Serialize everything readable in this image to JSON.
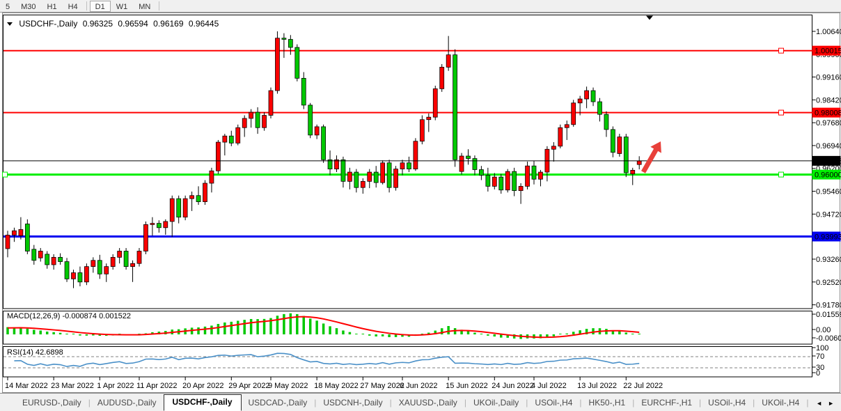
{
  "toolbar": {
    "groups": [
      [
        "5",
        "M30",
        "H1",
        "H4"
      ],
      [
        "D1",
        "W1",
        "MN"
      ]
    ],
    "active": "D1"
  },
  "tabs": {
    "items": [
      {
        "label": "EURUSD-,Daily",
        "active": false
      },
      {
        "label": "AUDUSD-,Daily",
        "active": false
      },
      {
        "label": "USDCHF-,Daily",
        "active": true
      },
      {
        "label": "USDCAD-,Daily",
        "active": false
      },
      {
        "label": "USDCNH-,Daily",
        "active": false
      },
      {
        "label": "XAUUSD-,Daily",
        "active": false
      },
      {
        "label": "UKOil-,Daily",
        "active": false
      },
      {
        "label": "USOil-,H4",
        "active": false
      },
      {
        "label": "HK50-,H1",
        "active": false
      },
      {
        "label": "EURCHF-,H1",
        "active": false
      },
      {
        "label": "USOil-,H4",
        "active": false
      },
      {
        "label": "UKOil-,H4",
        "active": false
      }
    ],
    "nav_left": "◄",
    "nav_right": "►"
  },
  "chart_data": {
    "type": "candlestick",
    "symbol": "USDCHF-,Daily",
    "title_ohlc": {
      "open": "0.96325",
      "high": "0.96594",
      "low": "0.96169",
      "close": "0.96445"
    },
    "colors": {
      "up": "#FA0000",
      "down": "#00C800",
      "wick": "#000000",
      "macd_hist": "#00C800",
      "macd_signal": "#FF0000",
      "rsi_line": "#4A90C8",
      "rsi_levels": "#808080",
      "arrow": "#E8403A",
      "current_price_line": "#000000"
    },
    "y_axis": {
      "ticks": [
        "1.00640",
        "0.99900",
        "0.99160",
        "0.98420",
        "0.97680",
        "0.96940",
        "0.96200",
        "0.95460",
        "0.94720",
        "0.93980",
        "0.93260",
        "0.92520",
        "0.91780"
      ]
    },
    "x_axis": {
      "ticks": [
        {
          "i": 0,
          "label": "14 Mar 2022"
        },
        {
          "i": 7,
          "label": "23 Mar 2022"
        },
        {
          "i": 14,
          "label": "1 Apr 2022"
        },
        {
          "i": 20,
          "label": "11 Apr 2022"
        },
        {
          "i": 27,
          "label": "20 Apr 2022"
        },
        {
          "i": 34,
          "label": "29 Apr 2022"
        },
        {
          "i": 40,
          "label": "9 May 2022"
        },
        {
          "i": 47,
          "label": "18 May 2022"
        },
        {
          "i": 54,
          "label": "27 May 2022"
        },
        {
          "i": 60,
          "label": "6 Jun 2022"
        },
        {
          "i": 67,
          "label": "15 Jun 2022"
        },
        {
          "i": 74,
          "label": "24 Jun 2022"
        },
        {
          "i": 80,
          "label": "4 Jul 2022"
        },
        {
          "i": 87,
          "label": "13 Jul 2022"
        },
        {
          "i": 94,
          "label": "22 Jul 2022"
        }
      ]
    },
    "h_lines": [
      {
        "price": 1.00015,
        "label": "1.00015",
        "color": "#FF0000",
        "width": 2,
        "handles": [
          1122
        ]
      },
      {
        "price": 0.98008,
        "label": "0.98008",
        "color": "#FF0000",
        "width": 2,
        "handles": [
          1122
        ]
      },
      {
        "price": 0.96,
        "label": "0.96000",
        "color": "#00EE00",
        "width": 3,
        "handles": [
          7,
          1122
        ]
      },
      {
        "price": 0.93993,
        "label": "0.93993",
        "color": "#0000F0",
        "width": 3,
        "handles": []
      }
    ],
    "current_price": {
      "value": 0.96445,
      "label": "0.96445"
    },
    "indicators": {
      "macd": {
        "label": "MACD(12,26,9)",
        "values": "-0.000874 0.001522",
        "axis": [
          "0.015596",
          "0.00",
          "-0.006055"
        ]
      },
      "rsi": {
        "label": "RSI(14)",
        "value": "42.6898",
        "axis": [
          "100",
          "70",
          "30",
          "0"
        ]
      }
    },
    "candles": [
      [
        0.936,
        0.9418,
        0.9332,
        0.9404
      ],
      [
        0.9404,
        0.9428,
        0.9382,
        0.9418
      ],
      [
        0.9402,
        0.9462,
        0.939,
        0.9422
      ],
      [
        0.944,
        0.9455,
        0.9342,
        0.9352
      ],
      [
        0.9358,
        0.9372,
        0.9308,
        0.9322
      ],
      [
        0.933,
        0.9362,
        0.9318,
        0.9352
      ],
      [
        0.9342,
        0.9352,
        0.9295,
        0.9308
      ],
      [
        0.9308,
        0.9342,
        0.9292,
        0.9332
      ],
      [
        0.9332,
        0.9345,
        0.9308,
        0.9318
      ],
      [
        0.9318,
        0.933,
        0.9252,
        0.9262
      ],
      [
        0.9262,
        0.9292,
        0.9232,
        0.9282
      ],
      [
        0.9282,
        0.9302,
        0.9238,
        0.9252
      ],
      [
        0.9252,
        0.9312,
        0.9242,
        0.9302
      ],
      [
        0.9302,
        0.9332,
        0.9282,
        0.9322
      ],
      [
        0.9322,
        0.934,
        0.9262,
        0.9278
      ],
      [
        0.9278,
        0.9312,
        0.9252,
        0.9302
      ],
      [
        0.9302,
        0.9342,
        0.9292,
        0.9332
      ],
      [
        0.9332,
        0.9362,
        0.9312,
        0.9352
      ],
      [
        0.9352,
        0.9362,
        0.9292,
        0.9302
      ],
      [
        0.9302,
        0.9322,
        0.9252,
        0.9312
      ],
      [
        0.9312,
        0.9362,
        0.9302,
        0.9352
      ],
      [
        0.9352,
        0.9448,
        0.9342,
        0.9438
      ],
      [
        0.9438,
        0.9462,
        0.9402,
        0.9442
      ],
      [
        0.9442,
        0.9452,
        0.9412,
        0.9428
      ],
      [
        0.9428,
        0.9455,
        0.9405,
        0.9448
      ],
      [
        0.9448,
        0.9532,
        0.9398,
        0.9522
      ],
      [
        0.9522,
        0.9532,
        0.9442,
        0.9462
      ],
      [
        0.9462,
        0.9532,
        0.9452,
        0.9522
      ],
      [
        0.9522,
        0.9545,
        0.9482,
        0.9532
      ],
      [
        0.9532,
        0.9562,
        0.9502,
        0.9512
      ],
      [
        0.9512,
        0.9582,
        0.9502,
        0.9572
      ],
      [
        0.9572,
        0.9622,
        0.9542,
        0.9612
      ],
      [
        0.9612,
        0.9712,
        0.9602,
        0.9705
      ],
      [
        0.9705,
        0.9732,
        0.9662,
        0.9725
      ],
      [
        0.9725,
        0.9742,
        0.9692,
        0.9702
      ],
      [
        0.9702,
        0.9762,
        0.9695,
        0.9752
      ],
      [
        0.9752,
        0.9792,
        0.9722,
        0.9782
      ],
      [
        0.9782,
        0.9812,
        0.9752,
        0.9802
      ],
      [
        0.9802,
        0.9818,
        0.9732,
        0.9752
      ],
      [
        0.9752,
        0.9802,
        0.9742,
        0.9792
      ],
      [
        0.9792,
        0.9882,
        0.9782,
        0.9872
      ],
      [
        0.9872,
        1.0064,
        0.9862,
        1.0042
      ],
      [
        1.0042,
        1.0058,
        0.9978,
        1.0038
      ],
      [
        1.0038,
        1.0052,
        0.9988,
        1.0012
      ],
      [
        1.0012,
        1.0022,
        0.9902,
        0.9912
      ],
      [
        0.9912,
        0.9932,
        0.9812,
        0.9825
      ],
      [
        0.9825,
        0.9832,
        0.9718,
        0.9728
      ],
      [
        0.9728,
        0.9762,
        0.9715,
        0.9755
      ],
      [
        0.9755,
        0.9762,
        0.9638,
        0.9648
      ],
      [
        0.9648,
        0.9678,
        0.9598,
        0.9618
      ],
      [
        0.9618,
        0.9662,
        0.9608,
        0.9648
      ],
      [
        0.9648,
        0.9658,
        0.9558,
        0.9578
      ],
      [
        0.9578,
        0.9622,
        0.9552,
        0.9608
      ],
      [
        0.9608,
        0.9618,
        0.9542,
        0.9558
      ],
      [
        0.9558,
        0.9588,
        0.9538,
        0.9578
      ],
      [
        0.9578,
        0.9618,
        0.9556,
        0.9608
      ],
      [
        0.9608,
        0.9628,
        0.9558,
        0.9574
      ],
      [
        0.9574,
        0.9646,
        0.9568,
        0.9638
      ],
      [
        0.9638,
        0.9648,
        0.9542,
        0.9558
      ],
      [
        0.9558,
        0.9628,
        0.9548,
        0.9618
      ],
      [
        0.9618,
        0.9648,
        0.9598,
        0.9638
      ],
      [
        0.9638,
        0.9658,
        0.9608,
        0.9618
      ],
      [
        0.9618,
        0.9718,
        0.9612,
        0.9708
      ],
      [
        0.9708,
        0.9792,
        0.9698,
        0.9778
      ],
      [
        0.9778,
        0.9798,
        0.9738,
        0.9786
      ],
      [
        0.9786,
        0.9888,
        0.9776,
        0.9878
      ],
      [
        0.9878,
        0.9958,
        0.9868,
        0.9948
      ],
      [
        0.9948,
        1.0049,
        0.9936,
        0.9988
      ],
      [
        0.9988,
        1.0006,
        0.9625,
        0.9648
      ],
      [
        0.961,
        0.967,
        0.96,
        0.966
      ],
      [
        0.966,
        0.9682,
        0.9632,
        0.9652
      ],
      [
        0.9652,
        0.9662,
        0.9598,
        0.9616
      ],
      [
        0.9616,
        0.9628,
        0.9582,
        0.9598
      ],
      [
        0.9598,
        0.9622,
        0.9545,
        0.9562
      ],
      [
        0.9562,
        0.9605,
        0.9552,
        0.9592
      ],
      [
        0.9592,
        0.9602,
        0.9538,
        0.955
      ],
      [
        0.955,
        0.9618,
        0.9542,
        0.961
      ],
      [
        0.961,
        0.9622,
        0.953,
        0.9548
      ],
      [
        0.9548,
        0.9572,
        0.9505,
        0.9562
      ],
      [
        0.9562,
        0.9642,
        0.9552,
        0.9628
      ],
      [
        0.9628,
        0.9645,
        0.9568,
        0.9585
      ],
      [
        0.9585,
        0.9615,
        0.9562,
        0.9608
      ],
      [
        0.9608,
        0.9692,
        0.9578,
        0.9682
      ],
      [
        0.9682,
        0.9705,
        0.9642,
        0.9692
      ],
      [
        0.9692,
        0.9762,
        0.9685,
        0.9752
      ],
      [
        0.9752,
        0.9775,
        0.9712,
        0.9762
      ],
      [
        0.9762,
        0.9842,
        0.9755,
        0.9832
      ],
      [
        0.9832,
        0.9855,
        0.9792,
        0.9845
      ],
      [
        0.9845,
        0.9885,
        0.9815,
        0.9872
      ],
      [
        0.9872,
        0.9882,
        0.9822,
        0.9836
      ],
      [
        0.9836,
        0.9848,
        0.9772,
        0.9795
      ],
      [
        0.9795,
        0.9805,
        0.9722,
        0.9746
      ],
      [
        0.9746,
        0.9756,
        0.9656,
        0.9672
      ],
      [
        0.9668,
        0.9732,
        0.9658,
        0.9722
      ],
      [
        0.9722,
        0.9732,
        0.9592,
        0.9606
      ],
      [
        0.9602,
        0.9622,
        0.9566,
        0.9614
      ],
      [
        0.96325,
        0.96594,
        0.96169,
        0.96445
      ]
    ]
  }
}
